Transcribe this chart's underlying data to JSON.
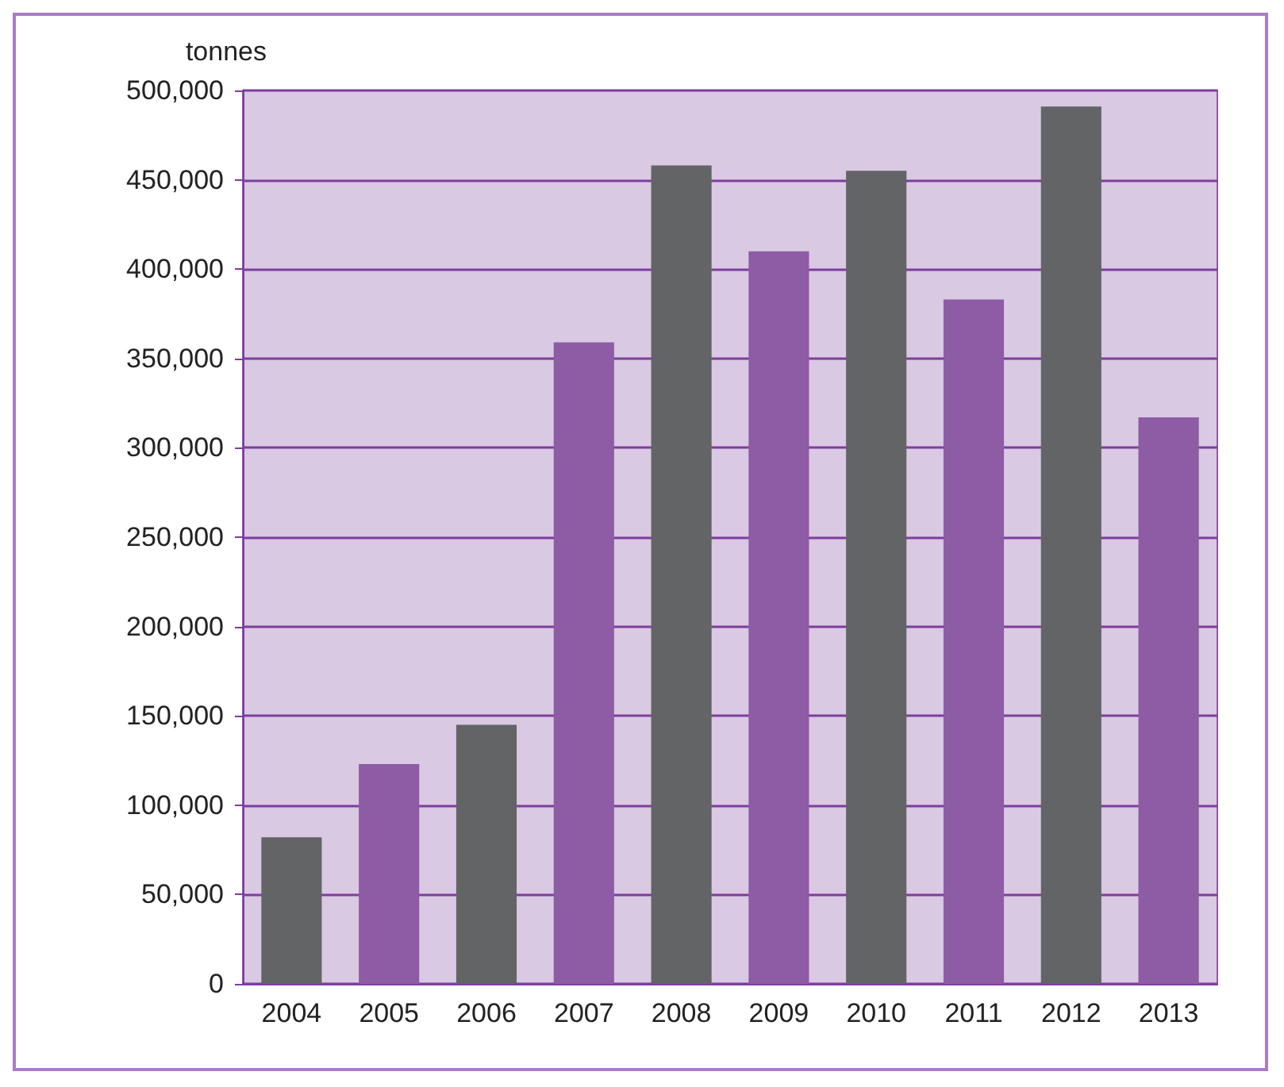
{
  "chart_data": {
    "type": "bar",
    "ylabel": "tonnes",
    "categories": [
      "2004",
      "2005",
      "2006",
      "2007",
      "2008",
      "2009",
      "2010",
      "2011",
      "2012",
      "2013"
    ],
    "values": [
      82000,
      123000,
      145000,
      359000,
      458000,
      410000,
      455000,
      383000,
      491000,
      317000
    ],
    "colors": [
      "#636466",
      "#8e5ba5",
      "#636466",
      "#8e5ba5",
      "#636466",
      "#8e5ba5",
      "#636466",
      "#8e5ba5",
      "#636466",
      "#8e5ba5"
    ],
    "ylim": [
      0,
      500000
    ],
    "yticks": [
      0,
      {
        "value": 50000,
        "label": "50,000"
      },
      {
        "value": 100000,
        "label": "100,000"
      },
      {
        "value": 150000,
        "label": "150,000"
      },
      {
        "value": 200000,
        "label": "200,000"
      },
      {
        "value": 250000,
        "label": "250,000"
      },
      {
        "value": 300000,
        "label": "300,000"
      },
      {
        "value": 350000,
        "label": "350,000"
      },
      {
        "value": 400000,
        "label": "400,000"
      },
      {
        "value": 450000,
        "label": "450,000"
      },
      {
        "value": 500000,
        "label": "500,000"
      }
    ],
    "grid": "y"
  }
}
